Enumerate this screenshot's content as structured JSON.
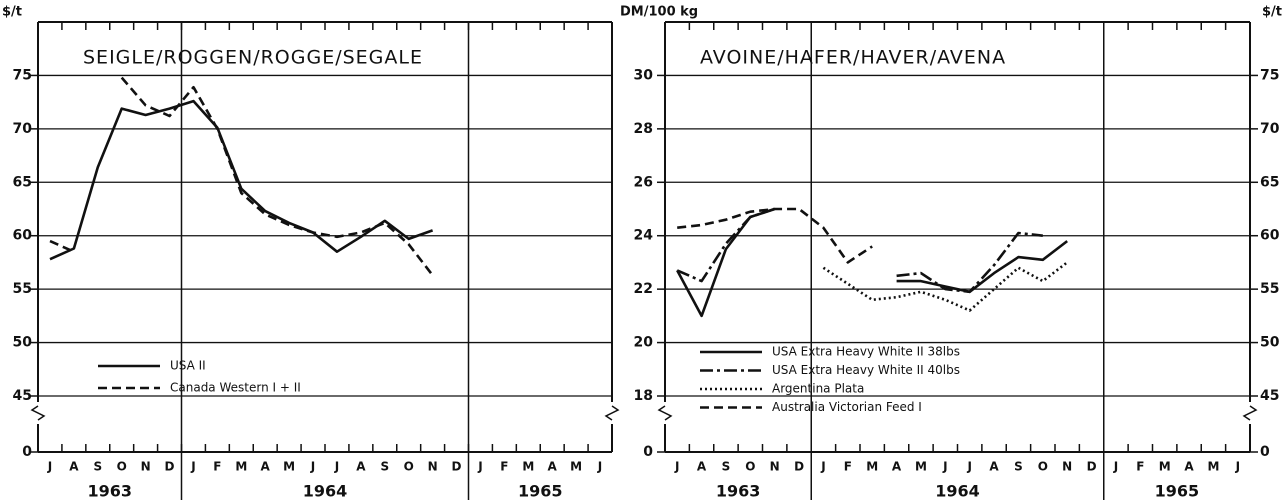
{
  "chart_data": [
    {
      "type": "line",
      "title": "SEIGLE/ROGGEN/ROGGE/SEGALE",
      "y_label": "$/t",
      "categories": [
        "J",
        "A",
        "S",
        "O",
        "N",
        "D",
        "J",
        "F",
        "M",
        "A",
        "M",
        "J",
        "J",
        "A",
        "S",
        "O",
        "N",
        "D",
        "J",
        "F",
        "M",
        "A",
        "M",
        "J"
      ],
      "year_labels": [
        "1963",
        "1964",
        "1965"
      ],
      "series": [
        {
          "name": "USA II",
          "color": "#111111",
          "style": "solid",
          "values": [
            57.8,
            58.8,
            66.4,
            71.9,
            71.3,
            71.9,
            72.6,
            70.1,
            64.4,
            62.3,
            61.2,
            60.3,
            58.5,
            59.9,
            61.4,
            59.7,
            60.5,
            null,
            null,
            null,
            null,
            null,
            null,
            null
          ]
        },
        {
          "name": "Canada Western I + II",
          "color": "#111111",
          "style": "dashed",
          "values": [
            59.5,
            58.5,
            null,
            74.8,
            72.2,
            71.2,
            73.9,
            70,
            64,
            62,
            61,
            60.3,
            59.9,
            60.3,
            61.2,
            59.2,
            56.3,
            null,
            null,
            null,
            null,
            null,
            null,
            null
          ]
        }
      ],
      "ylim": [
        0,
        80
      ],
      "yticks": [
        0,
        45,
        50,
        55,
        60,
        65,
        70,
        75
      ],
      "axis_break": true,
      "grid": true,
      "legend": "lower left"
    },
    {
      "type": "line",
      "title": "AVOINE/HAFER/HAVER/AVENA",
      "y_label": "DM/100 kg",
      "y2_label": "$/t",
      "categories": [
        "J",
        "A",
        "S",
        "O",
        "N",
        "D",
        "J",
        "F",
        "M",
        "A",
        "M",
        "J",
        "J",
        "A",
        "S",
        "O",
        "N",
        "D",
        "J",
        "F",
        "M",
        "A",
        "M",
        "J"
      ],
      "year_labels": [
        "1963",
        "1964",
        "1965"
      ],
      "series": [
        {
          "name": "USA Extra Heavy White II 38lbs",
          "color": "#111111",
          "style": "solid",
          "values": [
            22.7,
            21.0,
            23.5,
            24.7,
            25.0,
            null,
            null,
            null,
            null,
            22.3,
            22.3,
            22.1,
            21.9,
            22.6,
            23.2,
            23.1,
            23.8,
            null,
            null,
            null,
            null,
            null,
            null,
            null
          ]
        },
        {
          "name": "USA Extra Heavy White II 40lbs",
          "color": "#111111",
          "style": "dashdot",
          "values": [
            22.7,
            22.3,
            23.7,
            24.7,
            25.0,
            null,
            null,
            null,
            null,
            22.5,
            22.6,
            22.0,
            21.9,
            22.9,
            24.1,
            24.0,
            null,
            null,
            null,
            null,
            null,
            null,
            null,
            null
          ]
        },
        {
          "name": "Argentina Plata",
          "color": "#111111",
          "style": "dotted",
          "values": [
            null,
            null,
            null,
            null,
            null,
            null,
            22.8,
            22.2,
            21.6,
            21.7,
            21.9,
            21.6,
            21.2,
            22.0,
            22.8,
            22.3,
            23.0,
            null,
            null,
            null,
            null,
            null,
            null,
            null
          ]
        },
        {
          "name": "Australia Victorian Feed I",
          "color": "#111111",
          "style": "dashed",
          "values": [
            24.3,
            24.4,
            24.6,
            24.9,
            25.0,
            25.0,
            24.3,
            23.0,
            23.6,
            null,
            null,
            null,
            null,
            null,
            null,
            null,
            null,
            null,
            null,
            null,
            null,
            null,
            null,
            null
          ]
        }
      ],
      "ylim": [
        0,
        32
      ],
      "yticks": [
        0,
        18,
        20,
        22,
        24,
        26,
        28,
        30
      ],
      "y2lim": [
        0,
        80
      ],
      "y2ticks": [
        0,
        45,
        50,
        55,
        60,
        65,
        70,
        75
      ],
      "axis_break": true,
      "grid": true,
      "legend": "lower left"
    }
  ]
}
